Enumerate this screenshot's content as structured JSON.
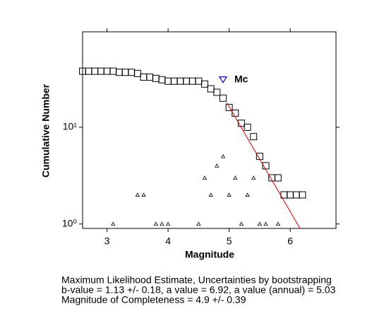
{
  "chart_data": {
    "type": "scatter",
    "xlabel": "Magnitude",
    "ylabel": "Cumulative Number",
    "xlim": [
      2.6,
      6.75
    ],
    "ylim": [
      0.9,
      97
    ],
    "log_y": true,
    "xticks": [
      3,
      4,
      5,
      6
    ],
    "yticks": [
      {
        "value": 1,
        "label": "10⁰"
      },
      {
        "value": 10,
        "label": "10¹"
      }
    ],
    "series": [
      {
        "marker": "square",
        "color": "#000000",
        "x": [
          2.6,
          2.7,
          2.8,
          2.9,
          3.0,
          3.1,
          3.2,
          3.3,
          3.4,
          3.5,
          3.6,
          3.7,
          3.8,
          3.9,
          4.0,
          4.1,
          4.2,
          4.3,
          4.4,
          4.5,
          4.6,
          4.7,
          4.8,
          4.9,
          5.0,
          5.1,
          5.2,
          5.3,
          5.4,
          5.5,
          5.6,
          5.7,
          5.8,
          5.9,
          6.0,
          6.1,
          6.2
        ],
        "values": [
          38,
          38,
          38,
          38,
          38,
          38,
          37,
          37,
          37,
          36,
          33,
          33,
          32,
          31,
          30,
          30,
          30,
          30,
          30,
          30,
          28,
          25,
          23,
          20,
          16,
          14,
          11,
          10,
          8,
          5,
          4,
          3,
          3,
          2,
          2,
          2,
          2
        ]
      },
      {
        "marker": "triangle",
        "color": "#000000",
        "x": [
          3.1,
          3.5,
          3.6,
          3.8,
          3.9,
          4.0,
          4.5,
          4.6,
          4.7,
          4.8,
          4.9,
          5.0,
          5.1,
          5.2,
          5.3,
          5.4,
          5.5,
          5.6,
          5.8
        ],
        "values": [
          1,
          2,
          2,
          1,
          1,
          1,
          1,
          3,
          2,
          4,
          5,
          2,
          3,
          1,
          2,
          3,
          1,
          1,
          1
        ]
      },
      {
        "marker": "line",
        "color": "#e00000",
        "x": [
          4.96,
          6.16
        ],
        "values": [
          18,
          0.9
        ]
      }
    ],
    "annotations": [
      {
        "text": "Mc",
        "x": 4.9,
        "y": 31,
        "color": "#0000c0"
      }
    ],
    "notes": [
      "Maximum Likelihood Estimate, Uncertainties by bootstrapping",
      "b-value = 1.13 +/- 0.18,  a value = 6.92,  a value (annual) = 5.03",
      "Magnitude of Completeness = 4.9 +/- 0.39"
    ]
  }
}
